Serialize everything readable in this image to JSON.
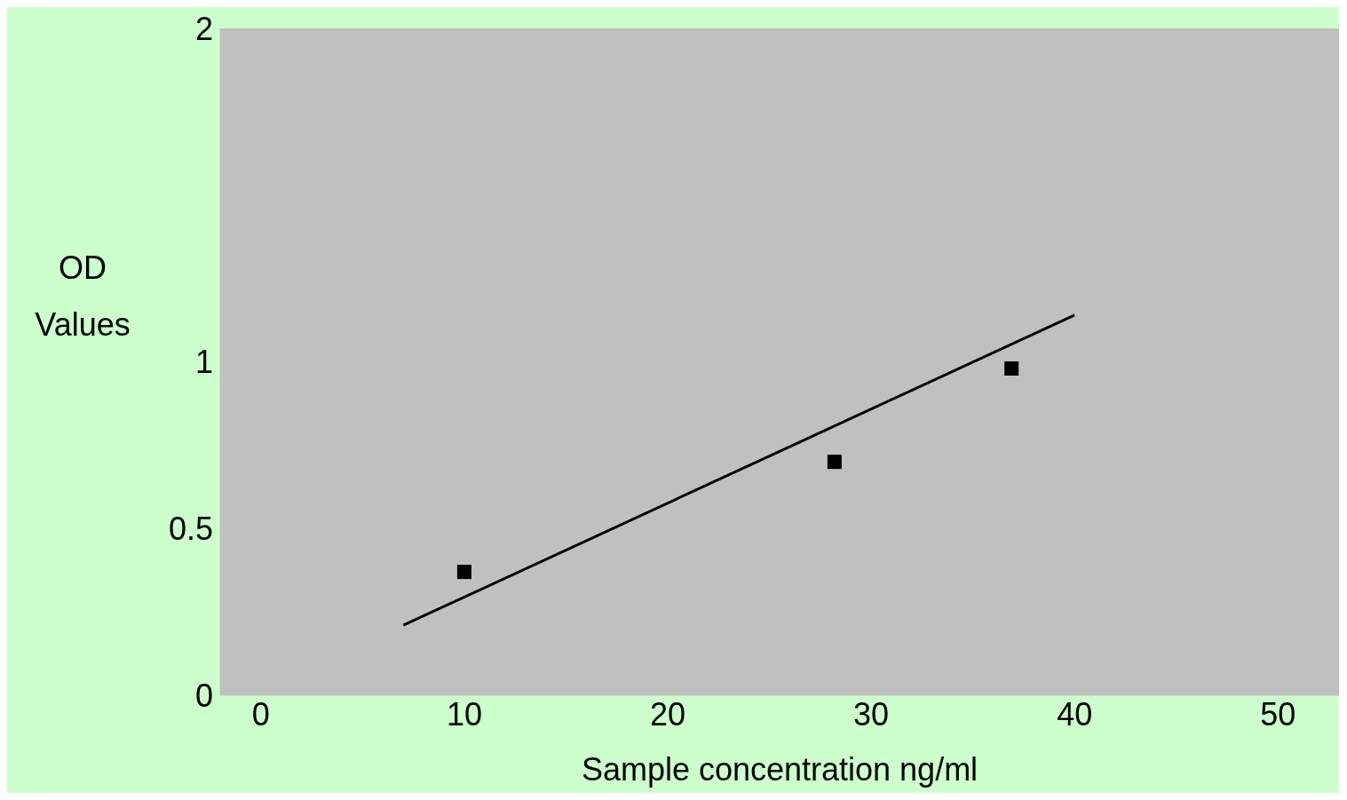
{
  "chart_data": {
    "type": "scatter",
    "xlabel": "Sample concentration ng/ml",
    "ylabel": "OD Values",
    "xlim": [
      -2,
      53
    ],
    "xticks": [
      0,
      10,
      20,
      30,
      40,
      50
    ],
    "ylim": [
      0,
      2
    ],
    "yticks": [
      0,
      0.5,
      1,
      2
    ],
    "grid": false,
    "marker": "square",
    "series": [
      {
        "color": "#000000",
        "x": [
          10,
          28.2,
          36.9
        ],
        "values": [
          0.37,
          0.7,
          0.98
        ]
      },
      {
        "type": "line",
        "color": "#000000",
        "marker": "none",
        "x": [
          7,
          40
        ],
        "values": [
          0.21,
          1.14
        ]
      }
    ]
  }
}
